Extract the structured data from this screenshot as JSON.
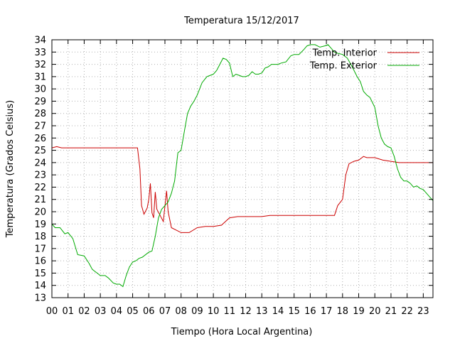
{
  "chart_data": {
    "type": "line",
    "title": "Temperatura 15/12/2017",
    "xlabel": "Tiempo (Hora Local Argentina)",
    "ylabel": "Temperatura (Grados Celsius)",
    "xlim": [
      0,
      23.6
    ],
    "ylim": [
      13,
      34
    ],
    "x_tick_labels": [
      "00",
      "01",
      "02",
      "03",
      "04",
      "05",
      "06",
      "07",
      "08",
      "09",
      "10",
      "11",
      "12",
      "13",
      "14",
      "15",
      "16",
      "17",
      "18",
      "19",
      "20",
      "21",
      "22",
      "23"
    ],
    "y_tick_labels": [
      "13",
      "14",
      "15",
      "16",
      "17",
      "18",
      "19",
      "20",
      "21",
      "22",
      "23",
      "24",
      "25",
      "26",
      "27",
      "28",
      "29",
      "30",
      "31",
      "32",
      "33",
      "34"
    ],
    "grid": true,
    "legend_position": "top-right",
    "series": [
      {
        "name": "Temp. Interior",
        "color": "#cc0000",
        "x": [
          0,
          0.3,
          0.6,
          1,
          1.5,
          2,
          2.5,
          3,
          3.5,
          4,
          4.5,
          5,
          5.3,
          5.45,
          5.55,
          5.7,
          5.9,
          6.0,
          6.1,
          6.2,
          6.3,
          6.4,
          6.5,
          6.7,
          6.9,
          7.1,
          7.2,
          7.4,
          7.7,
          8,
          8.5,
          9,
          9.5,
          10,
          10.5,
          11,
          11.5,
          12,
          12.5,
          13,
          13.5,
          14,
          14.5,
          15,
          15.5,
          16,
          16.5,
          17,
          17.5,
          17.7,
          18,
          18.2,
          18.4,
          18.7,
          19,
          19.3,
          19.5,
          20,
          20.5,
          21,
          21.5,
          22,
          22.5,
          23,
          23.6
        ],
        "y": [
          25.2,
          25.3,
          25.2,
          25.2,
          25.2,
          25.2,
          25.2,
          25.2,
          25.2,
          25.2,
          25.2,
          25.2,
          25.2,
          23.5,
          20.5,
          19.8,
          20.3,
          21.0,
          22.3,
          19.9,
          19.5,
          21.6,
          20.2,
          19.7,
          19.2,
          21.7,
          20.0,
          18.7,
          18.5,
          18.3,
          18.3,
          18.7,
          18.8,
          18.8,
          18.9,
          19.5,
          19.6,
          19.6,
          19.6,
          19.6,
          19.7,
          19.7,
          19.7,
          19.7,
          19.7,
          19.7,
          19.7,
          19.7,
          19.7,
          20.5,
          21.0,
          23.0,
          23.9,
          24.1,
          24.2,
          24.5,
          24.4,
          24.4,
          24.2,
          24.1,
          24.0,
          24.0,
          24.0,
          24.0,
          24.0
        ]
      },
      {
        "name": "Temp. Exterior",
        "color": "#00aa00",
        "x": [
          0,
          0.2,
          0.5,
          0.8,
          1,
          1.3,
          1.6,
          2,
          2.3,
          2.5,
          2.8,
          3,
          3.3,
          3.5,
          3.8,
          4,
          4.2,
          4.4,
          4.6,
          4.8,
          5,
          5.2,
          5.4,
          5.6,
          6,
          6.2,
          6.4,
          6.6,
          6.8,
          7,
          7.2,
          7.4,
          7.6,
          7.8,
          8,
          8.2,
          8.4,
          8.6,
          8.8,
          9,
          9.3,
          9.6,
          10,
          10.2,
          10.4,
          10.6,
          10.8,
          11,
          11.2,
          11.4,
          11.6,
          11.8,
          12,
          12.2,
          12.4,
          12.6,
          12.8,
          13,
          13.2,
          13.4,
          13.6,
          13.8,
          14,
          14.2,
          14.5,
          14.8,
          15,
          15.3,
          15.6,
          15.8,
          16,
          16.3,
          16.6,
          16.9,
          17.1,
          17.3,
          17.5,
          17.7,
          18,
          18.3,
          18.6,
          18.9,
          19.1,
          19.3,
          19.5,
          19.7,
          20,
          20.2,
          20.4,
          20.6,
          20.8,
          21,
          21.2,
          21.4,
          21.6,
          21.8,
          22,
          22.2,
          22.4,
          22.6,
          22.8,
          23,
          23.2,
          23.4,
          23.6
        ],
        "y": [
          19.0,
          18.7,
          18.7,
          18.2,
          18.3,
          17.8,
          16.5,
          16.4,
          15.8,
          15.3,
          15.0,
          14.8,
          14.8,
          14.6,
          14.2,
          14.1,
          14.1,
          13.9,
          14.8,
          15.5,
          15.9,
          16.0,
          16.2,
          16.3,
          16.7,
          16.8,
          18.0,
          19.5,
          20.2,
          20.5,
          20.8,
          21.5,
          22.5,
          24.8,
          25.0,
          26.5,
          28.0,
          28.6,
          29.0,
          29.5,
          30.5,
          31.0,
          31.2,
          31.5,
          32.0,
          32.5,
          32.4,
          32.1,
          31.0,
          31.2,
          31.1,
          31.0,
          31.0,
          31.1,
          31.4,
          31.2,
          31.2,
          31.3,
          31.7,
          31.8,
          32.0,
          32.0,
          32.0,
          32.1,
          32.2,
          32.7,
          32.8,
          32.8,
          33.2,
          33.5,
          33.6,
          33.6,
          33.4,
          33.5,
          33.6,
          33.3,
          33.0,
          32.9,
          32.8,
          32.5,
          31.8,
          31.0,
          30.6,
          29.8,
          29.5,
          29.3,
          28.5,
          27.0,
          26.0,
          25.5,
          25.3,
          25.2,
          24.5,
          23.5,
          22.8,
          22.5,
          22.5,
          22.3,
          22.0,
          22.1,
          21.9,
          21.8,
          21.5,
          21.2,
          20.9
        ]
      }
    ]
  }
}
